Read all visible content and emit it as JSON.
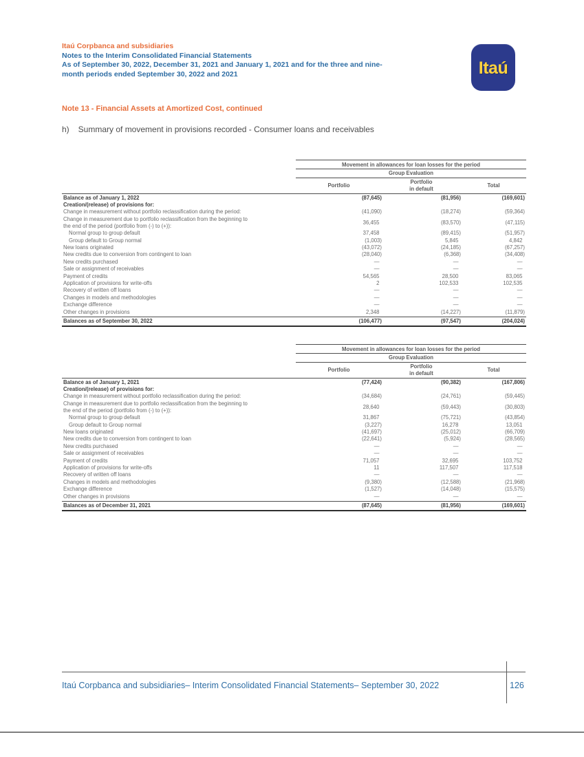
{
  "colors": {
    "orange": "#e76f3c",
    "blue": "#2e6da4",
    "logo_bg": "#2c3a8c",
    "logo_yellow": "#ffd23e",
    "text_gray": "#6b6b6b",
    "text_dark": "#3f3f3f",
    "line": "#4d4d4d"
  },
  "header": {
    "company": "Itaú Corpbanca and subsidiaries",
    "title": "Notes to the Interim Consolidated Financial Statements",
    "subtitle": "As of September 30, 2022, December 31, 2021 and January 1, 2021 and for the three and nine-\nmonth periods ended September 30, 2022 and 2021",
    "logo_text": "Itaú"
  },
  "note_title": "Note 13 - Financial Assets at Amortized Cost, continued",
  "section": {
    "prefix": "h)",
    "text": "Summary of movement in provisions recorded - Consumer loans and receivables"
  },
  "tables": [
    {
      "header": {
        "title": "Movement in allowances for loan losses for the period",
        "subtitle": "Group Evaluation",
        "columns": [
          "Portfolio",
          "Portfolio\nin default",
          "Total"
        ]
      },
      "rows": [
        {
          "label": "Balance as of January 1, 2022",
          "bold": true,
          "values": [
            "(87,645)",
            "(81,956)",
            "(169,601)"
          ]
        },
        {
          "label": "Creation/(release) of provisions for:",
          "bold": true,
          "values": [
            "",
            "",
            ""
          ]
        },
        {
          "label": "Change in measurement without portfolio reclassification during the period:",
          "values": [
            "(41,090)",
            "(18,274)",
            "(59,364)"
          ]
        },
        {
          "label": "Change in measurement due to portfolio reclassification from the beginning to\nthe end of the period (portfolio from (-) to (+)):",
          "values": [
            "36,455",
            "(83,570)",
            "(47,115)"
          ]
        },
        {
          "label": "Normal group to group default",
          "indent": true,
          "values": [
            "37,458",
            "(89,415)",
            "(51,957)"
          ]
        },
        {
          "label": "Group default to Group normal",
          "indent": true,
          "values": [
            "(1,003)",
            "5,845",
            "4,842"
          ]
        },
        {
          "label": "New loans originated",
          "values": [
            "(43,072)",
            "(24,185)",
            "(67,257)"
          ]
        },
        {
          "label": "New credits due to conversion from contingent to loan",
          "values": [
            "(28,040)",
            "(6,368)",
            "(34,408)"
          ]
        },
        {
          "label": "New credits purchased",
          "values": [
            "—",
            "—",
            "—"
          ]
        },
        {
          "label": "Sale or assignment of receivables",
          "values": [
            "—",
            "—",
            "—"
          ]
        },
        {
          "label": "Payment of credits",
          "values": [
            "54,565",
            "28,500",
            "83,065"
          ]
        },
        {
          "label": "Application of provisions for write-offs",
          "values": [
            "2",
            "102,533",
            "102,535"
          ]
        },
        {
          "label": "Recovery of written off loans",
          "values": [
            "—",
            "—",
            "—"
          ]
        },
        {
          "label": "Changes in models and methodologies",
          "values": [
            "—",
            "—",
            "—"
          ]
        },
        {
          "label": "Exchange difference",
          "values": [
            "—",
            "—",
            "—"
          ]
        },
        {
          "label": "Other changes in provisions",
          "values": [
            "2,348",
            "(14,227)",
            "(11,879)"
          ]
        },
        {
          "label": "Balances as of September 30, 2022",
          "bold": true,
          "total": true,
          "values": [
            "(106,477)",
            "(97,547)",
            "(204,024)"
          ]
        }
      ]
    },
    {
      "header": {
        "title": "Movement in allowances for loan losses for the period",
        "subtitle": "Group Evaluation",
        "columns": [
          "Portfolio",
          "Portfolio\nin default",
          "Total"
        ]
      },
      "rows": [
        {
          "label": "Balance as of January 1, 2021",
          "bold": true,
          "values": [
            "(77,424)",
            "(90,382)",
            "(167,806)"
          ]
        },
        {
          "label": "Creation/(release) of provisions for:",
          "bold": true,
          "values": [
            "",
            "",
            ""
          ]
        },
        {
          "label": "Change in measurement without portfolio reclassification during the period:",
          "values": [
            "(34,684)",
            "(24,761)",
            "(59,445)"
          ]
        },
        {
          "label": "Change in measurement due to portfolio reclassification from the beginning to\nthe end of the period (portfolio from (-) to (+)):",
          "values": [
            "28,640",
            "(59,443)",
            "(30,803)"
          ]
        },
        {
          "label": "Normal group to group default",
          "indent": true,
          "values": [
            "31,867",
            "(75,721)",
            "(43,854)"
          ]
        },
        {
          "label": "Group default to Group normal",
          "indent": true,
          "values": [
            "(3,227)",
            "16,278",
            "13,051"
          ]
        },
        {
          "label": "New loans originated",
          "values": [
            "(41,697)",
            "(25,012)",
            "(66,709)"
          ]
        },
        {
          "label": "New credits due to conversion from contingent to loan",
          "values": [
            "(22,641)",
            "(5,924)",
            "(28,565)"
          ]
        },
        {
          "label": "New credits purchased",
          "values": [
            "—",
            "—",
            "—"
          ]
        },
        {
          "label": "Sale or assignment of receivables",
          "values": [
            "—",
            "—",
            "—"
          ]
        },
        {
          "label": "Payment of credits",
          "values": [
            "71,057",
            "32,695",
            "103,752"
          ]
        },
        {
          "label": "Application of provisions for write-offs",
          "values": [
            "11",
            "117,507",
            "117,518"
          ]
        },
        {
          "label": "Recovery of written off loans",
          "values": [
            "—",
            "—",
            "—"
          ]
        },
        {
          "label": "Changes in models and methodologies",
          "values": [
            "(9,380)",
            "(12,588)",
            "(21,968)"
          ]
        },
        {
          "label": "Exchange difference",
          "values": [
            "(1,527)",
            "(14,048)",
            "(15,575)"
          ]
        },
        {
          "label": "Other changes in provisions",
          "values": [
            "—",
            "—",
            "—"
          ]
        },
        {
          "label": "Balances as of December 31, 2021",
          "bold": true,
          "total": true,
          "values": [
            "(87,645)",
            "(81,956)",
            "(169,601)"
          ]
        }
      ]
    }
  ],
  "footer": {
    "text": "Itaú Corpbanca and subsidiaries– Interim Consolidated Financial Statements– September 30, 2022",
    "page_number": "126"
  }
}
